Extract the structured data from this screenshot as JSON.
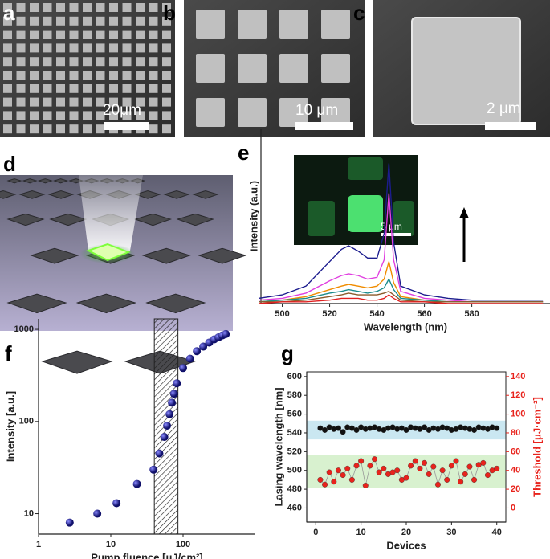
{
  "panels": [
    {
      "label": "a",
      "scale_bar": "20μm"
    },
    {
      "label": "b",
      "scale_bar": "10 μm"
    },
    {
      "label": "c",
      "scale_bar": "2 μm"
    },
    {
      "label": "d"
    }
  ],
  "chart_data": [
    {
      "type": "line",
      "label": "e",
      "xlabel": "Wavelength (nm)",
      "ylabel": "Intensity (a.u.)",
      "inset_scale_bar": "5 μm",
      "x": [
        490,
        500,
        510,
        520,
        525,
        528,
        532,
        536,
        540,
        543,
        545,
        547,
        550,
        560,
        570,
        580,
        590,
        600,
        610
      ],
      "xlim": [
        491,
        613
      ],
      "xticks": [
        500,
        520,
        540,
        560,
        580
      ],
      "ylim": [
        0,
        100
      ],
      "series": [
        {
          "color": "#1c1c8e",
          "values": [
            3,
            5,
            10,
            24,
            31,
            33,
            30,
            26,
            26,
            40,
            80,
            35,
            10,
            5,
            3,
            2,
            2,
            2,
            2
          ]
        },
        {
          "color": "#e040e0",
          "values": [
            2,
            3,
            6,
            13,
            16,
            17,
            16,
            14,
            15,
            25,
            63,
            25,
            7,
            3,
            2,
            1,
            1,
            1,
            1
          ]
        },
        {
          "color": "#f08c00",
          "values": [
            1,
            2,
            4,
            8,
            10,
            11,
            10,
            9,
            10,
            14,
            24,
            12,
            4,
            2,
            1,
            1,
            1,
            1,
            1
          ]
        },
        {
          "color": "#1a8c8c",
          "values": [
            1,
            2,
            3,
            6,
            7,
            8,
            7,
            6,
            7,
            9,
            14,
            8,
            3,
            2,
            1,
            1,
            1,
            1,
            1
          ]
        },
        {
          "color": "#8c5a2a",
          "values": [
            1,
            1,
            2,
            4,
            5,
            6,
            5,
            5,
            5,
            6,
            7,
            5,
            2,
            1,
            1,
            1,
            1,
            1,
            1
          ]
        },
        {
          "color": "#e02020",
          "values": [
            0,
            1,
            1,
            2,
            3,
            3,
            3,
            2,
            2,
            3,
            5,
            3,
            1,
            1,
            0,
            0,
            0,
            0,
            0
          ]
        }
      ]
    },
    {
      "type": "scatter",
      "label": "f",
      "xlabel": "Pump fluence [μJ/cm²]",
      "ylabel": "Intensity [a.u.]",
      "xscale": "log",
      "yscale": "log",
      "xlim": [
        1,
        1000
      ],
      "ylim": [
        6,
        1300
      ],
      "xticks": [
        1,
        10,
        100
      ],
      "yticks": [
        10,
        100,
        1000
      ],
      "shaded_band": [
        40,
        85
      ],
      "x": [
        2.7,
        6.5,
        12,
        23,
        39,
        47,
        55,
        60,
        65,
        70,
        75,
        82,
        100,
        125,
        155,
        190,
        230,
        270,
        310,
        350,
        390
      ],
      "series": [
        {
          "color": "#1a1a8c",
          "values": [
            8,
            10,
            13,
            21,
            30,
            45,
            68,
            90,
            120,
            160,
            200,
            260,
            380,
            480,
            580,
            650,
            720,
            780,
            820,
            860,
            890
          ]
        }
      ]
    },
    {
      "type": "scatter",
      "label": "g",
      "xlabel": "Devices",
      "ylabel": "Lasing wavelength [nm]",
      "y2label": "Threshold [μJ·cm⁻²]",
      "box": true,
      "y2color": "#e8231c",
      "xlim": [
        -2,
        42
      ],
      "xticks": [
        0,
        10,
        20,
        30,
        40
      ],
      "ylim": [
        445,
        605
      ],
      "yticks": [
        460,
        480,
        500,
        520,
        540,
        560,
        580,
        600
      ],
      "y2lim": [
        -15,
        145
      ],
      "y2ticks": [
        0,
        20,
        40,
        60,
        80,
        100,
        120,
        140
      ],
      "bands": [
        {
          "range": [
            533,
            553
          ],
          "color": "#9fd3e6"
        },
        {
          "range": [
            481,
            516
          ],
          "color": "#b8e6a8"
        }
      ],
      "x": [
        1,
        2,
        3,
        4,
        5,
        6,
        7,
        8,
        9,
        10,
        11,
        12,
        13,
        14,
        15,
        16,
        17,
        18,
        19,
        20,
        21,
        22,
        23,
        24,
        25,
        26,
        27,
        28,
        29,
        30,
        31,
        32,
        33,
        34,
        35,
        36,
        37,
        38,
        39,
        40
      ],
      "series": [
        {
          "color": "#111111",
          "connect": true,
          "values": [
            545,
            543,
            546,
            544,
            545,
            541,
            546,
            545,
            543,
            546,
            544,
            545,
            546,
            544,
            543,
            545,
            546,
            544,
            545,
            543,
            546,
            545,
            544,
            546,
            543,
            545,
            544,
            546,
            545,
            543,
            544,
            546,
            545,
            544,
            543,
            546,
            545,
            544,
            546,
            545
          ]
        },
        {
          "color": "#e8231c",
          "axis": "y2",
          "connect": true,
          "values": [
            30,
            25,
            38,
            28,
            40,
            35,
            42,
            30,
            45,
            50,
            24,
            45,
            52,
            38,
            42,
            36,
            38,
            40,
            30,
            32,
            45,
            50,
            42,
            48,
            36,
            44,
            25,
            40,
            30,
            45,
            50,
            28,
            36,
            44,
            30,
            46,
            48,
            35,
            40,
            42
          ]
        }
      ]
    }
  ]
}
